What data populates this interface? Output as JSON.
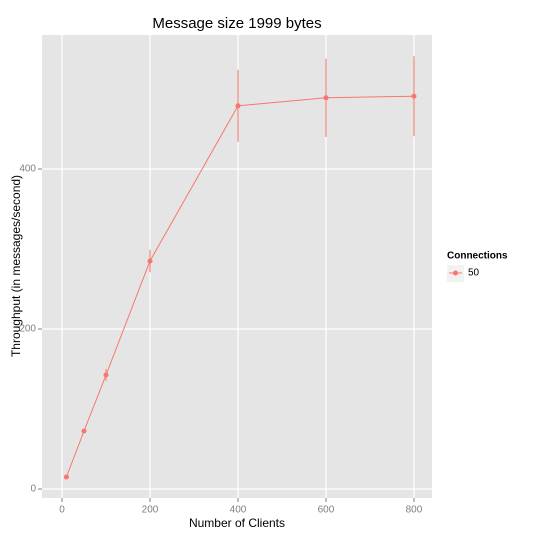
{
  "chart_data": {
    "type": "line",
    "title": "Message size 1999 bytes",
    "x_label": "Number of Clients",
    "y_label": "Throughput (in messages/second)",
    "x": [
      10,
      50,
      100,
      200,
      400,
      600,
      800
    ],
    "series": [
      {
        "name": "50",
        "color": "#f8766d",
        "values": [
          15,
          72.5,
          142.5,
          285,
          479,
          489,
          491
        ],
        "errors": [
          2,
          3,
          7.5,
          14,
          45,
          49,
          50
        ]
      }
    ],
    "legend_title": "Connections",
    "legend": "right",
    "xlim": [
      -45.5,
      841
    ],
    "xticks": [
      0,
      200,
      400,
      600,
      800
    ],
    "ylim": [
      -11.25,
      567.5
    ],
    "yticks": [
      0,
      200,
      400
    ],
    "grid": true
  }
}
